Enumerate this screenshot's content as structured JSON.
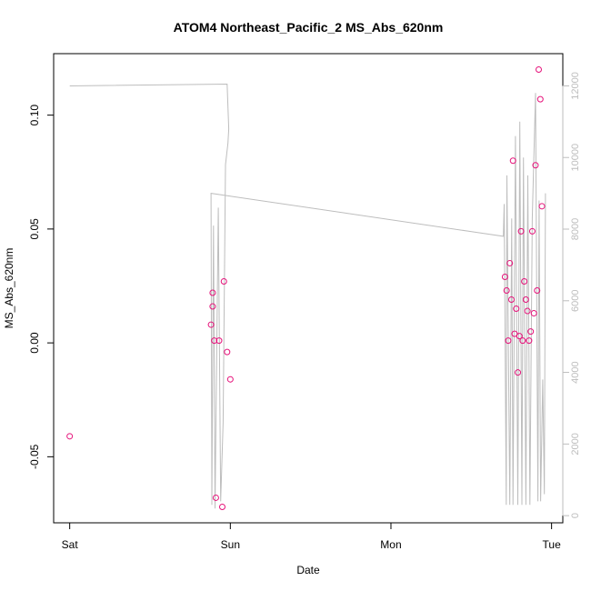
{
  "chart_data": {
    "type": "scatter",
    "title": "ATOM4 Northeast_Pacific_2 MS_Abs_620nm",
    "xlabel": "Date",
    "ylabel": "MS_Abs_620nm",
    "x_ticks": [
      "Sat",
      "Sun",
      "Mon",
      "Tue"
    ],
    "x_tick_positions_days": [
      0,
      1,
      2,
      3
    ],
    "xlim_days": [
      -0.1,
      3.07
    ],
    "ylim": [
      -0.079,
      0.127
    ],
    "y_ticks": [
      -0.05,
      0.0,
      0.05,
      0.1
    ],
    "y_tick_labels": [
      "-0.05",
      "0.00",
      "0.05",
      "0.10"
    ],
    "y2lim": [
      -200,
      12900
    ],
    "y2_ticks": [
      0,
      2000,
      4000,
      6000,
      8000,
      10000,
      12000
    ],
    "y2_tick_labels": [
      "0",
      "2000",
      "4000",
      "6000",
      "8000",
      "10000",
      "12000"
    ],
    "grid": false,
    "colors": {
      "points": "#e6127a",
      "line": "#bdbdbd",
      "axes": "#000000",
      "secondary_axis": "#bdbdbd"
    },
    "series": [
      {
        "kind": "points",
        "axis": "left",
        "x": [
          0.0,
          0.88,
          0.89,
          0.89,
          0.9,
          0.91,
          0.93,
          0.95,
          0.96,
          0.98,
          1.0,
          2.71,
          2.72,
          2.73,
          2.74,
          2.75,
          2.76,
          2.77,
          2.78,
          2.79,
          2.8,
          2.81,
          2.82,
          2.83,
          2.84,
          2.85,
          2.86,
          2.87,
          2.88,
          2.89,
          2.9,
          2.91,
          2.92,
          2.93,
          2.94
        ],
        "y": [
          -0.041,
          0.008,
          0.016,
          0.022,
          0.001,
          -0.068,
          0.001,
          -0.072,
          0.027,
          -0.004,
          -0.016,
          0.029,
          0.023,
          0.001,
          0.035,
          0.019,
          0.08,
          0.004,
          0.015,
          -0.013,
          0.003,
          0.049,
          0.001,
          0.027,
          0.019,
          0.014,
          0.001,
          0.005,
          0.049,
          0.013,
          0.078,
          0.023,
          0.12,
          0.107,
          0.06
        ]
      },
      {
        "kind": "line",
        "axis": "right",
        "x": [
          0.0,
          0.98,
          0.99,
          0.985,
          0.97,
          0.955,
          0.94,
          0.925,
          0.905,
          0.895,
          0.885,
          0.88,
          2.7,
          2.705,
          2.718,
          2.722,
          2.74,
          2.752,
          2.76,
          2.775,
          2.79,
          2.802,
          2.815,
          2.825,
          2.84,
          2.852,
          2.865,
          2.88,
          2.9,
          2.915,
          2.922,
          2.932,
          2.945,
          2.955,
          2.962
        ],
        "y": [
          12000,
          12050,
          10800,
          10400,
          9800,
          2600,
          400,
          8600,
          200,
          8100,
          300,
          9000,
          7800,
          8700,
          300,
          9500,
          300,
          8300,
          300,
          10600,
          300,
          11000,
          300,
          10000,
          300,
          9500,
          300,
          8300,
          11800,
          400,
          8800,
          400,
          3800,
          600,
          9000
        ]
      }
    ]
  }
}
